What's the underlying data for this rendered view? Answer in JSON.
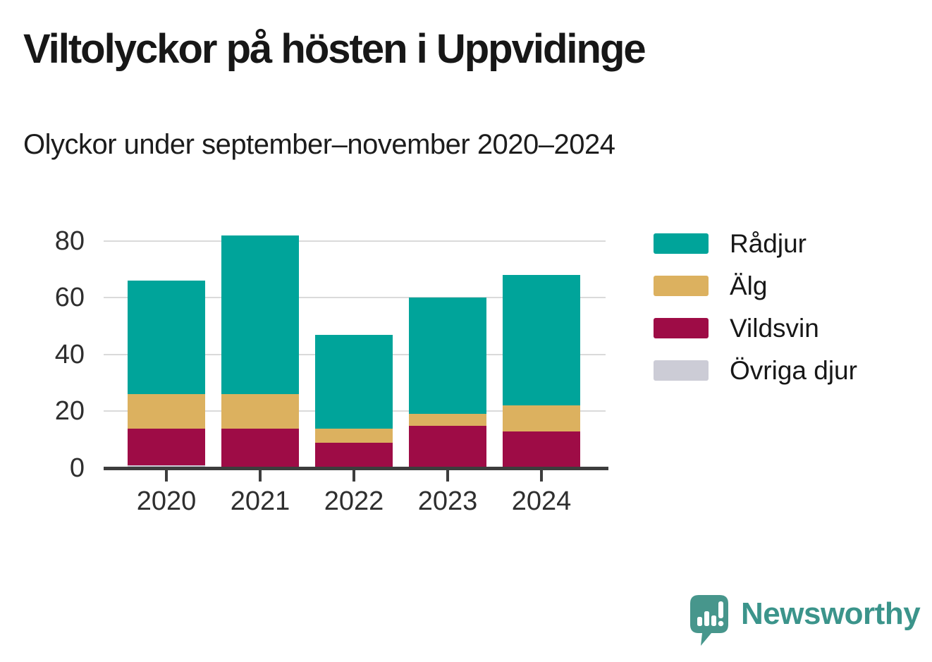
{
  "header": {
    "title": "Viltolyckor på hösten i Uppvidinge",
    "subtitle": "Olyckor under september–november 2020–2024"
  },
  "chart_data": {
    "type": "bar",
    "stacked": true,
    "title": "Viltolyckor på hösten i Uppvidinge",
    "subtitle": "Olyckor under september–november 2020–2024",
    "categories": [
      "2020",
      "2021",
      "2022",
      "2023",
      "2024"
    ],
    "series": [
      {
        "name": "Rådjur",
        "color": "#00a49a",
        "values": [
          40,
          56,
          33,
          41,
          46
        ]
      },
      {
        "name": "Älg",
        "color": "#dcb15f",
        "values": [
          12,
          12,
          5,
          4,
          9
        ]
      },
      {
        "name": "Vildsvin",
        "color": "#9e0c46",
        "values": [
          13,
          14,
          9,
          15,
          13
        ]
      },
      {
        "name": "Övriga djur",
        "color": "#ccccd6",
        "values": [
          1,
          0,
          0,
          0,
          0
        ]
      }
    ],
    "totals": [
      66,
      82,
      47,
      60,
      68
    ],
    "xlabel": "",
    "ylabel": "",
    "ylim": [
      0,
      85
    ],
    "yticks": [
      0,
      20,
      40,
      60,
      80
    ],
    "grid": true,
    "legend_position": "right",
    "stack_order_bottom_to_top": [
      "Övriga djur",
      "Vildsvin",
      "Älg",
      "Rådjur"
    ],
    "colors": {
      "grid": "#dadada",
      "axis": "#3d3d3d",
      "tick_text": "#2e2e2e"
    }
  },
  "branding": {
    "name": "Newsworthy",
    "logo_icon": "speech-bubble-bar-chart-icon",
    "color": "#3b948b"
  }
}
